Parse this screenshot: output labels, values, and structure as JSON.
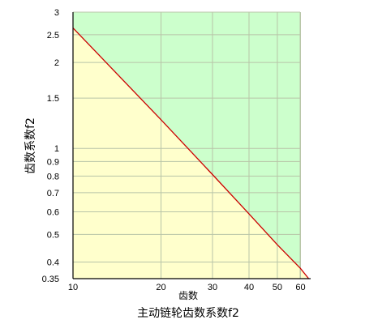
{
  "chart_data": {
    "type": "line",
    "title": "主动链轮齿数系数f2",
    "xlabel": "齿数",
    "ylabel": "齿数系数f2",
    "x_scale": "log",
    "y_scale": "log",
    "xlim": [
      10,
      65
    ],
    "ylim": [
      0.35,
      3
    ],
    "x_ticks": [
      10,
      20,
      30,
      40,
      50,
      60
    ],
    "y_ticks": [
      0.35,
      0.4,
      0.5,
      0.6,
      0.7,
      0.8,
      0.9,
      1,
      1.5,
      2,
      2.5,
      3
    ],
    "grid": true,
    "series": [
      {
        "x": [
          10,
          20,
          30,
          40,
          50,
          60,
          64
        ],
        "y": [
          2.64,
          1.26,
          0.81,
          0.59,
          0.46,
          0.38,
          0.35
        ]
      }
    ],
    "colors": {
      "above_fill": "#ccffcc",
      "below_fill": "#ffffcc",
      "line": "#cc0000",
      "grid": "#b8c4a8"
    }
  }
}
